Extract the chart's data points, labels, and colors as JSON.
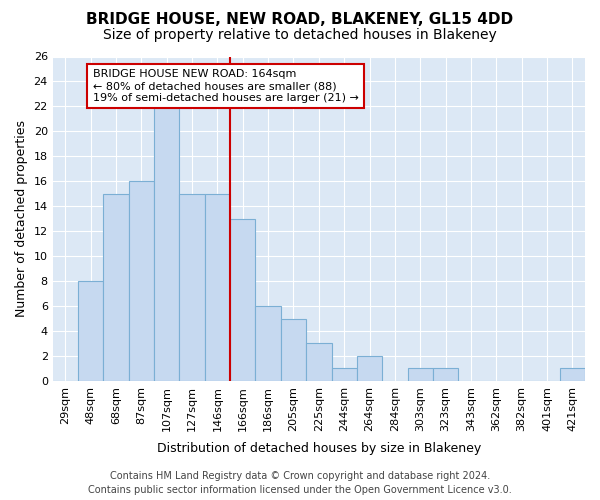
{
  "title": "BRIDGE HOUSE, NEW ROAD, BLAKENEY, GL15 4DD",
  "subtitle": "Size of property relative to detached houses in Blakeney",
  "xlabel": "Distribution of detached houses by size in Blakeney",
  "ylabel": "Number of detached properties",
  "categories": [
    "29sqm",
    "48sqm",
    "68sqm",
    "87sqm",
    "107sqm",
    "127sqm",
    "146sqm",
    "166sqm",
    "186sqm",
    "205sqm",
    "225sqm",
    "244sqm",
    "264sqm",
    "284sqm",
    "303sqm",
    "323sqm",
    "343sqm",
    "362sqm",
    "382sqm",
    "401sqm",
    "421sqm"
  ],
  "values": [
    0,
    8,
    15,
    16,
    22,
    15,
    15,
    13,
    6,
    5,
    3,
    1,
    2,
    0,
    1,
    1,
    0,
    0,
    0,
    0,
    1
  ],
  "bar_color": "#c6d9f0",
  "bar_edge_color": "#7bafd4",
  "ref_line_index": 7,
  "ref_line_color": "#cc0000",
  "annotation_line1": "BRIDGE HOUSE NEW ROAD: 164sqm",
  "annotation_line2": "← 80% of detached houses are smaller (88)",
  "annotation_line3": "19% of semi-detached houses are larger (21) →",
  "annotation_box_facecolor": "#ffffff",
  "annotation_box_edgecolor": "#cc0000",
  "ylim": [
    0,
    26
  ],
  "yticks": [
    0,
    2,
    4,
    6,
    8,
    10,
    12,
    14,
    16,
    18,
    20,
    22,
    24,
    26
  ],
  "plot_bg_color": "#dce8f5",
  "grid_color": "#ffffff",
  "footer_line1": "Contains HM Land Registry data © Crown copyright and database right 2024.",
  "footer_line2": "Contains public sector information licensed under the Open Government Licence v3.0.",
  "title_fontsize": 11,
  "subtitle_fontsize": 10,
  "xlabel_fontsize": 9,
  "ylabel_fontsize": 9,
  "tick_fontsize": 8,
  "annotation_fontsize": 8,
  "footer_fontsize": 7
}
